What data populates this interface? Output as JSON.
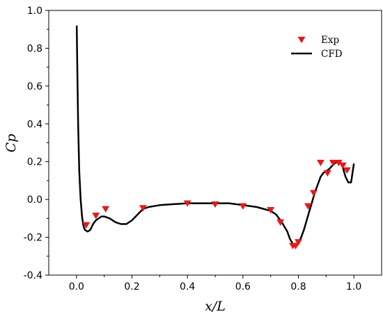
{
  "chart_data": {
    "type": "line",
    "title": "",
    "xlabel": "x/L",
    "ylabel": "Cp",
    "xlim": [
      -0.1,
      1.1
    ],
    "ylim": [
      -0.4,
      1.0
    ],
    "xticks": [
      0.0,
      0.2,
      0.4,
      0.6,
      0.8,
      1.0
    ],
    "xtick_labels": [
      "0.0",
      "0.2",
      "0.4",
      "0.6",
      "0.8",
      "1.0"
    ],
    "yticks": [
      -0.4,
      -0.2,
      0.0,
      0.2,
      0.4,
      0.6,
      0.8,
      1.0
    ],
    "ytick_labels": [
      "-0.4",
      "-0.2",
      "0.0",
      "0.2",
      "0.4",
      "0.6",
      "0.8",
      "1.0"
    ],
    "grid": false,
    "legend": "top-right",
    "series": [
      {
        "name": "Exp",
        "kind": "scatter",
        "marker": "triangle-down",
        "color": "#e41a1c",
        "x": [
          0.035,
          0.07,
          0.105,
          0.24,
          0.4,
          0.5,
          0.6,
          0.7,
          0.735,
          0.78,
          0.79,
          0.8,
          0.835,
          0.855,
          0.88,
          0.905,
          0.925,
          0.945,
          0.96,
          0.975
        ],
        "y": [
          -0.135,
          -0.085,
          -0.05,
          -0.045,
          -0.02,
          -0.025,
          -0.035,
          -0.055,
          -0.12,
          -0.245,
          -0.245,
          -0.225,
          -0.035,
          0.035,
          0.195,
          0.14,
          0.195,
          0.195,
          0.18,
          0.155
        ]
      },
      {
        "name": "CFD",
        "kind": "line",
        "color": "#000000",
        "x": [
          0.001,
          0.003,
          0.006,
          0.01,
          0.015,
          0.02,
          0.025,
          0.03,
          0.04,
          0.05,
          0.06,
          0.07,
          0.08,
          0.09,
          0.1,
          0.12,
          0.14,
          0.16,
          0.18,
          0.2,
          0.22,
          0.24,
          0.26,
          0.28,
          0.3,
          0.35,
          0.4,
          0.45,
          0.5,
          0.55,
          0.6,
          0.65,
          0.7,
          0.72,
          0.74,
          0.76,
          0.77,
          0.78,
          0.79,
          0.8,
          0.81,
          0.82,
          0.83,
          0.84,
          0.85,
          0.86,
          0.87,
          0.88,
          0.89,
          0.9,
          0.91,
          0.92,
          0.93,
          0.94,
          0.95,
          0.96,
          0.97,
          0.98,
          0.99,
          1.0
        ],
        "y": [
          0.92,
          0.7,
          0.4,
          0.15,
          0.0,
          -0.09,
          -0.14,
          -0.16,
          -0.17,
          -0.16,
          -0.13,
          -0.11,
          -0.1,
          -0.09,
          -0.09,
          -0.1,
          -0.12,
          -0.13,
          -0.13,
          -0.11,
          -0.08,
          -0.05,
          -0.04,
          -0.035,
          -0.03,
          -0.025,
          -0.02,
          -0.02,
          -0.02,
          -0.02,
          -0.03,
          -0.04,
          -0.06,
          -0.08,
          -0.12,
          -0.17,
          -0.21,
          -0.235,
          -0.24,
          -0.23,
          -0.2,
          -0.16,
          -0.11,
          -0.06,
          -0.01,
          0.04,
          0.08,
          0.12,
          0.14,
          0.15,
          0.16,
          0.175,
          0.19,
          0.2,
          0.2,
          0.17,
          0.12,
          0.09,
          0.09,
          0.19
        ]
      }
    ]
  }
}
